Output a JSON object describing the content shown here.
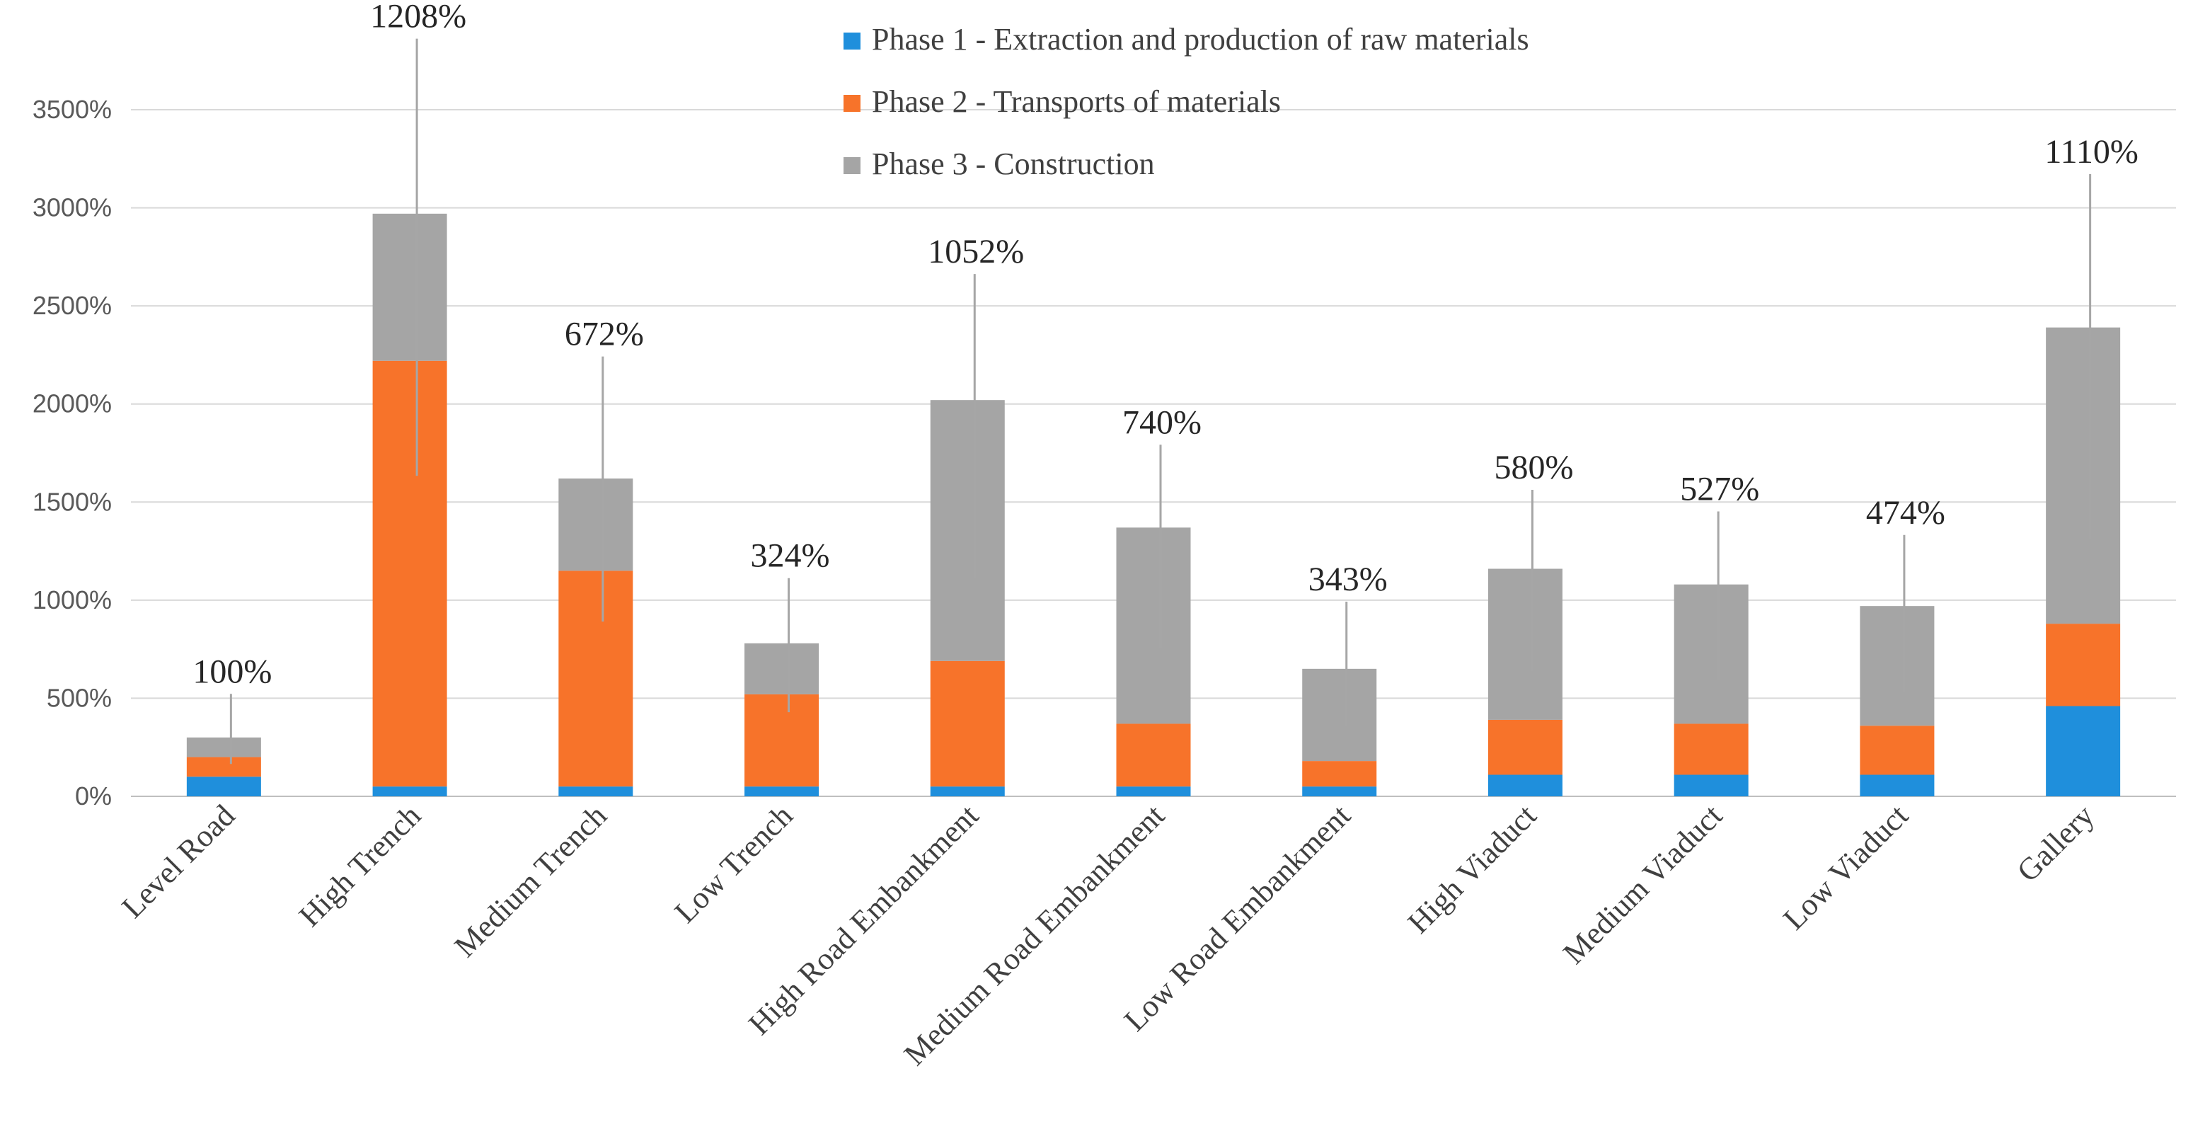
{
  "chart_data": {
    "type": "bar",
    "stacked": true,
    "title": "",
    "xlabel": "",
    "ylabel": "",
    "ylim": [
      0,
      3500
    ],
    "yticks": [
      0,
      500,
      1000,
      1500,
      2000,
      2500,
      3000,
      3500
    ],
    "ytick_labels": [
      "0%",
      "500%",
      "1000%",
      "1500%",
      "2000%",
      "2500%",
      "3000%",
      "3500%"
    ],
    "grid": true,
    "legend_position": "top-center",
    "categories": [
      "Level Road",
      "High Trench",
      "Medium Trench",
      "Low Trench",
      "High Road Embankment",
      "Medium Road Embankment",
      "Low Road Embankment",
      "High Viaduct",
      "Medium Viaduct",
      "Low Viaduct",
      "Gallery"
    ],
    "series": [
      {
        "name": "Phase 1 - Extraction and production of raw materials",
        "color": "#1f8fdc",
        "values": [
          100,
          50,
          50,
          50,
          50,
          50,
          50,
          110,
          110,
          110,
          460
        ]
      },
      {
        "name": "Phase 2 - Transports of materials",
        "color": "#f7732a",
        "values": [
          100,
          2170,
          1100,
          470,
          640,
          320,
          130,
          280,
          260,
          250,
          420
        ]
      },
      {
        "name": "Phase 3 - Construction",
        "color": "#a5a5a5",
        "values": [
          100,
          750,
          470,
          260,
          1330,
          1000,
          470,
          770,
          710,
          610,
          1510
        ]
      }
    ],
    "annotations": [
      "100%",
      "1208%",
      "672%",
      "324%",
      "1052%",
      "740%",
      "343%",
      "580%",
      "527%",
      "474%",
      "1110%"
    ],
    "annotation_values": [
      100,
      1208,
      672,
      324,
      1052,
      740,
      343,
      580,
      527,
      474,
      1110
    ],
    "annotation_label_heights": [
      580,
      3920,
      2300,
      1170,
      2720,
      1850,
      1050,
      1620,
      1510,
      1390,
      3230
    ]
  }
}
